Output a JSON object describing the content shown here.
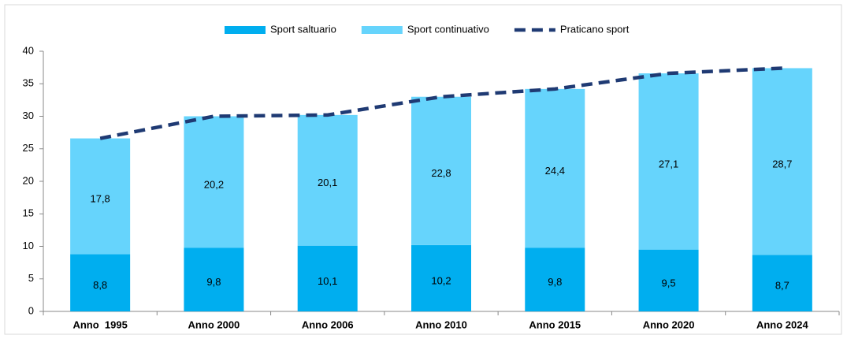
{
  "chart_data": {
    "type": "bar",
    "stacked": true,
    "categories": [
      "Anno  1995",
      "Anno 2000",
      "Anno 2006",
      "Anno 2010",
      "Anno 2015",
      "Anno 2020",
      "Anno 2024"
    ],
    "series": [
      {
        "name": "Sport saltuario",
        "color": "#00aeef",
        "values": [
          8.8,
          9.8,
          10.1,
          10.2,
          9.8,
          9.5,
          8.7
        ],
        "value_labels": [
          "8,8",
          "9,8",
          "10,1",
          "10,2",
          "9,8",
          "9,5",
          "8,7"
        ]
      },
      {
        "name": "Sport continuativo",
        "color": "#66d4fc",
        "values": [
          17.8,
          20.2,
          20.1,
          22.8,
          24.4,
          27.1,
          28.7
        ],
        "value_labels": [
          "17,8",
          "20,2",
          "20,1",
          "22,8",
          "24,4",
          "27,1",
          "28,7"
        ]
      },
      {
        "name": "Praticano sport",
        "type": "line",
        "color": "#1f3a73",
        "values": [
          26.6,
          30.0,
          30.2,
          33.0,
          34.2,
          36.6,
          37.4
        ]
      }
    ],
    "ylim": [
      0,
      40
    ],
    "yticks": [
      0,
      5,
      10,
      15,
      20,
      25,
      30,
      35,
      40
    ],
    "legend": "top"
  }
}
